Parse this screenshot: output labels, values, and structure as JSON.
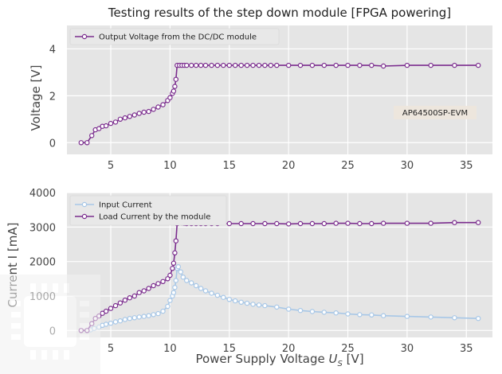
{
  "chart_data": [
    {
      "type": "line",
      "title": "Testing results of the step down module [FPGA powering]",
      "xlabel": "",
      "ylabel": "Voltage [V]",
      "xlim": [
        1.3,
        37.2
      ],
      "ylim": [
        -0.5,
        5.0
      ],
      "xticks": [
        5,
        10,
        15,
        20,
        25,
        30,
        35
      ],
      "yticks": [
        0,
        2,
        4
      ],
      "grid": true,
      "legend_position": "top-left",
      "annotation": "AP64500SP-EVM",
      "series": [
        {
          "name": "Output Voltage from the DC/DC module",
          "color": "#7b2d8e",
          "marker_fill": "#ffffff",
          "x": [
            2.5,
            3.0,
            3.4,
            3.7,
            4.0,
            4.3,
            4.6,
            5.0,
            5.4,
            5.8,
            6.2,
            6.6,
            7.0,
            7.4,
            7.8,
            8.2,
            8.6,
            9.0,
            9.4,
            9.8,
            10.0,
            10.2,
            10.3,
            10.4,
            10.5,
            10.6,
            10.8,
            11.0,
            11.2,
            11.4,
            11.8,
            12.2,
            12.6,
            13.0,
            13.5,
            14.0,
            14.5,
            15.0,
            15.5,
            16.0,
            16.5,
            17.0,
            17.5,
            18.0,
            18.5,
            19.0,
            20.0,
            21.0,
            22.0,
            23.0,
            24.0,
            25.0,
            26.0,
            27.0,
            28.0,
            30.0,
            32.0,
            34.0,
            36.0
          ],
          "y": [
            0.0,
            0.0,
            0.3,
            0.55,
            0.6,
            0.7,
            0.72,
            0.82,
            0.88,
            1.0,
            1.06,
            1.12,
            1.18,
            1.25,
            1.3,
            1.33,
            1.42,
            1.52,
            1.62,
            1.8,
            1.92,
            2.1,
            2.2,
            2.4,
            2.7,
            3.3,
            3.3,
            3.3,
            3.3,
            3.3,
            3.3,
            3.3,
            3.3,
            3.3,
            3.3,
            3.3,
            3.3,
            3.3,
            3.3,
            3.3,
            3.3,
            3.3,
            3.3,
            3.3,
            3.3,
            3.3,
            3.3,
            3.3,
            3.3,
            3.3,
            3.3,
            3.3,
            3.3,
            3.3,
            3.27,
            3.3,
            3.3,
            3.3,
            3.3
          ]
        }
      ]
    },
    {
      "type": "line",
      "title": "",
      "xlabel": "Power Supply Voltage Us [V]",
      "xlabel_main": "Power Supply Voltage ",
      "xlabel_var": "U",
      "xlabel_sub": "S",
      "xlabel_tail": " [V]",
      "ylabel": "Current I [mA]",
      "xlim": [
        1.3,
        37.2
      ],
      "ylim": [
        -200,
        4000
      ],
      "xticks": [
        5,
        10,
        15,
        20,
        25,
        30,
        35
      ],
      "yticks": [
        0,
        1000,
        2000,
        3000,
        4000
      ],
      "grid": true,
      "legend_position": "top-left",
      "series": [
        {
          "name": "Input Current",
          "color": "#a7c7e7",
          "marker_fill": "#ffffff",
          "x": [
            3.0,
            3.3,
            3.6,
            4.0,
            4.3,
            4.6,
            5.0,
            5.4,
            5.8,
            6.2,
            6.6,
            7.0,
            7.4,
            7.8,
            8.2,
            8.6,
            9.0,
            9.4,
            9.8,
            10.0,
            10.2,
            10.3,
            10.4,
            10.5,
            10.6,
            10.7,
            10.9,
            11.1,
            11.4,
            11.8,
            12.2,
            12.6,
            13.0,
            13.5,
            14.0,
            14.5,
            15.0,
            15.5,
            16.0,
            16.5,
            17.0,
            17.5,
            18.0,
            19.0,
            20.0,
            21.0,
            22.0,
            23.0,
            24.0,
            25.0,
            26.0,
            27.0,
            28.0,
            30.0,
            32.0,
            34.0,
            36.0
          ],
          "y": [
            0,
            20,
            60,
            100,
            150,
            180,
            210,
            250,
            280,
            320,
            350,
            370,
            390,
            410,
            430,
            460,
            490,
            560,
            700,
            870,
            1000,
            1100,
            1250,
            1450,
            1800,
            1850,
            1700,
            1550,
            1450,
            1380,
            1300,
            1220,
            1150,
            1080,
            1020,
            960,
            900,
            860,
            820,
            790,
            760,
            740,
            720,
            680,
            620,
            580,
            550,
            530,
            510,
            480,
            460,
            450,
            430,
            410,
            390,
            370,
            350
          ]
        },
        {
          "name": "Load Current by the module",
          "color": "#7b2d8e",
          "marker_fill": "#ffffff",
          "x": [
            2.5,
            3.0,
            3.4,
            3.7,
            4.0,
            4.3,
            4.6,
            5.0,
            5.4,
            5.8,
            6.2,
            6.6,
            7.0,
            7.4,
            7.8,
            8.2,
            8.6,
            9.0,
            9.4,
            9.8,
            10.0,
            10.2,
            10.3,
            10.4,
            10.5,
            10.6,
            10.8,
            11.0,
            11.2,
            11.4,
            11.8,
            12.2,
            12.6,
            13.0,
            13.5,
            14.0,
            15.0,
            16.0,
            17.0,
            18.0,
            19.0,
            20.0,
            21.0,
            22.0,
            23.0,
            24.0,
            25.0,
            26.0,
            27.0,
            28.0,
            30.0,
            32.0,
            34.0,
            36.0
          ],
          "y": [
            0,
            0,
            200,
            350,
            420,
            500,
            560,
            640,
            720,
            800,
            880,
            950,
            1000,
            1100,
            1150,
            1220,
            1300,
            1360,
            1420,
            1500,
            1600,
            1800,
            1950,
            2250,
            2600,
            3100,
            3150,
            3120,
            3110,
            3100,
            3100,
            3100,
            3100,
            3100,
            3100,
            3100,
            3100,
            3100,
            3100,
            3100,
            3100,
            3090,
            3100,
            3100,
            3100,
            3110,
            3110,
            3100,
            3100,
            3110,
            3110,
            3110,
            3130,
            3130
          ]
        }
      ]
    }
  ]
}
